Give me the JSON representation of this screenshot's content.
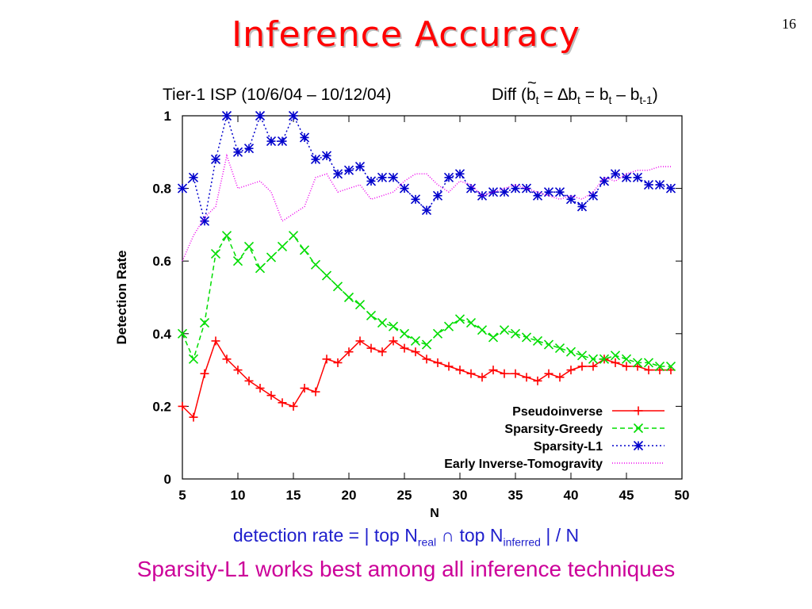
{
  "slide": {
    "page_number": "16",
    "title": "Inference Accuracy",
    "subtitle_left": "Tier-1 ISP (10/6/04 – 10/12/04)",
    "diff": {
      "prefix": "Diff (",
      "b1": "b",
      "t1": "t",
      "mid1": " = ∆b",
      "t2": "t",
      "mid2": " = b",
      "t3": "t",
      "mid3": " – b",
      "t4": "t-1",
      "suffix": ")"
    },
    "formula": {
      "a": "detection rate = | top N",
      "sub_real": "real",
      "b": " ∩ top N",
      "sub_inferred": "inferred",
      "c": " | / N"
    },
    "conclusion": "Sparsity-L1 works best among all inference techniques"
  },
  "chart_data": {
    "type": "line",
    "xlabel": "N",
    "ylabel": "Detection Rate",
    "xlim": [
      5,
      50
    ],
    "ylim": [
      0,
      1
    ],
    "xticks": [
      "5",
      "10",
      "15",
      "20",
      "25",
      "30",
      "35",
      "40",
      "45",
      "50"
    ],
    "yticks": [
      "0",
      "0.2",
      "0.4",
      "0.6",
      "0.8",
      "1"
    ],
    "legend_position": "bottom-right",
    "x": [
      5,
      6,
      7,
      8,
      9,
      10,
      11,
      12,
      13,
      14,
      15,
      16,
      17,
      18,
      19,
      20,
      21,
      22,
      23,
      24,
      25,
      26,
      27,
      28,
      29,
      30,
      31,
      32,
      33,
      34,
      35,
      36,
      37,
      38,
      39,
      40,
      41,
      42,
      43,
      44,
      45,
      46,
      47,
      48,
      49
    ],
    "series": [
      {
        "name": "Pseudoinverse",
        "color": "#ff0000",
        "marker": "plus",
        "dash": "",
        "values": [
          0.2,
          0.17,
          0.29,
          0.38,
          0.33,
          0.3,
          0.27,
          0.25,
          0.23,
          0.21,
          0.2,
          0.25,
          0.24,
          0.33,
          0.32,
          0.35,
          0.38,
          0.36,
          0.35,
          0.38,
          0.36,
          0.35,
          0.33,
          0.32,
          0.31,
          0.3,
          0.29,
          0.28,
          0.3,
          0.29,
          0.29,
          0.28,
          0.27,
          0.29,
          0.28,
          0.3,
          0.31,
          0.31,
          0.33,
          0.32,
          0.31,
          0.31,
          0.3,
          0.3,
          0.3
        ]
      },
      {
        "name": "Sparsity-Greedy",
        "color": "#00dd00",
        "marker": "x",
        "dash": "6,4",
        "values": [
          0.4,
          0.33,
          0.43,
          0.62,
          0.67,
          0.6,
          0.64,
          0.58,
          0.61,
          0.64,
          0.67,
          0.63,
          0.59,
          0.56,
          0.53,
          0.5,
          0.48,
          0.45,
          0.43,
          0.42,
          0.4,
          0.38,
          0.37,
          0.4,
          0.42,
          0.44,
          0.43,
          0.41,
          0.39,
          0.41,
          0.4,
          0.39,
          0.38,
          0.37,
          0.36,
          0.35,
          0.34,
          0.33,
          0.33,
          0.34,
          0.33,
          0.32,
          0.32,
          0.31,
          0.31
        ]
      },
      {
        "name": "Sparsity-L1",
        "color": "#0000cc",
        "marker": "star",
        "dash": "2,3",
        "values": [
          0.8,
          0.83,
          0.71,
          0.88,
          1.0,
          0.9,
          0.91,
          1.0,
          0.93,
          0.93,
          1.0,
          0.94,
          0.88,
          0.89,
          0.84,
          0.85,
          0.86,
          0.82,
          0.83,
          0.83,
          0.8,
          0.77,
          0.74,
          0.78,
          0.83,
          0.84,
          0.8,
          0.78,
          0.79,
          0.79,
          0.8,
          0.8,
          0.78,
          0.79,
          0.79,
          0.77,
          0.75,
          0.78,
          0.82,
          0.84,
          0.83,
          0.83,
          0.81,
          0.81,
          0.8
        ]
      },
      {
        "name": "Early Inverse-Tomogravity",
        "color": "#ee00ee",
        "marker": "none",
        "dash": "1,2",
        "values": [
          0.6,
          0.67,
          0.72,
          0.75,
          0.89,
          0.8,
          0.81,
          0.82,
          0.79,
          0.71,
          0.73,
          0.75,
          0.83,
          0.84,
          0.79,
          0.8,
          0.81,
          0.77,
          0.78,
          0.79,
          0.82,
          0.84,
          0.84,
          0.81,
          0.79,
          0.82,
          0.81,
          0.78,
          0.79,
          0.8,
          0.81,
          0.8,
          0.79,
          0.78,
          0.77,
          0.78,
          0.77,
          0.79,
          0.83,
          0.82,
          0.84,
          0.85,
          0.85,
          0.86,
          0.86
        ]
      }
    ]
  }
}
